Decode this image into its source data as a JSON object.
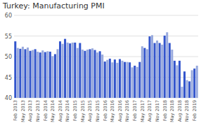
{
  "chart_data": {
    "type": "bar",
    "title": "Turkey: Manufacturing PMI",
    "categories": [
      "Feb 2013",
      null,
      null,
      "May 2013",
      null,
      null,
      "Aug 2013",
      null,
      null,
      "Nov 2013",
      null,
      null,
      "Feb 2014",
      null,
      null,
      "May 2014",
      null,
      null,
      "Aug 2014",
      null,
      null,
      "Nov 2014",
      null,
      null,
      "Feb 2015",
      null,
      null,
      "May 2015",
      null,
      null,
      "Aug 2015",
      null,
      null,
      "Nov 2015",
      null,
      null,
      "Feb 2016",
      null,
      null,
      "May 2016",
      null,
      null,
      "Aug 2016",
      null,
      null,
      "Nov 2016",
      null,
      null,
      "Feb 2017",
      null,
      null,
      "May 2017",
      null,
      null,
      "Aug 2017",
      null,
      null,
      "Nov 2017",
      null,
      null,
      "Feb 2018",
      null,
      null,
      "May 2018",
      null,
      null,
      "Aug 2018",
      null,
      null,
      "Nov 2018",
      null,
      null,
      "Feb 2019",
      null
    ],
    "values": [
      53.7,
      52.1,
      51.9,
      52.4,
      51.8,
      52.2,
      51.4,
      51.6,
      51.8,
      51.2,
      51.0,
      51.5,
      51.1,
      51.3,
      51.2,
      50.1,
      50.6,
      51.8,
      53.7,
      53.1,
      54.3,
      53.4,
      53.2,
      53.4,
      53.4,
      52.1,
      53.3,
      51.7,
      51.4,
      51.7,
      51.8,
      52.0,
      51.6,
      51.0,
      51.3,
      50.5,
      48.8,
      49.2,
      49.5,
      48.6,
      49.3,
      48.5,
      49.4,
      49.0,
      48.7,
      48.7,
      48.6,
      47.4,
      47.8,
      47.5,
      48.7,
      52.5,
      52.1,
      51.8,
      54.9,
      55.2,
      53.3,
      53.9,
      53.3,
      52.9,
      55.1,
      55.9,
      53.3,
      51.7,
      49.0,
      47.9,
      49.0,
      42.7,
      46.4,
      44.3,
      44.0,
      46.7,
      47.1,
      47.8
    ],
    "colors": [
      "#3355cc",
      "#99aadd",
      "#3355cc",
      "#99aadd",
      "#3355cc",
      "#99aadd",
      "#3355cc",
      "#99aadd",
      "#3355cc",
      "#99aadd",
      "#3355cc",
      "#99aadd",
      "#3355cc",
      "#99aadd",
      "#3355cc",
      "#99aadd",
      "#3355cc",
      "#99aadd",
      "#3355cc",
      "#99aadd",
      "#3355cc",
      "#99aadd",
      "#3355cc",
      "#99aadd",
      "#3355cc",
      "#99aadd",
      "#3355cc",
      "#99aadd",
      "#3355cc",
      "#99aadd",
      "#3355cc",
      "#99aadd",
      "#3355cc",
      "#99aadd",
      "#3355cc",
      "#99aadd",
      "#3355cc",
      "#99aadd",
      "#3355cc",
      "#99aadd",
      "#3355cc",
      "#99aadd",
      "#3355cc",
      "#99aadd",
      "#3355cc",
      "#99aadd",
      "#3355cc",
      "#99aadd",
      "#3355cc",
      "#99aadd",
      "#3355cc",
      "#99aadd",
      "#3355cc",
      "#99aadd",
      "#3355cc",
      "#99aadd",
      "#3355cc",
      "#99aadd",
      "#3355cc",
      "#99aadd",
      "#3355cc",
      "#99aadd",
      "#3355cc",
      "#99aadd",
      "#3355cc",
      "#99aadd",
      "#3355cc",
      "#99aadd",
      "#3355cc",
      "#99aadd",
      "#3355cc",
      "#99aadd",
      "#3355cc",
      "#99aadd"
    ],
    "ylim": [
      40,
      60
    ],
    "yticks": [
      40,
      45,
      50,
      55,
      60
    ],
    "grid": true
  }
}
